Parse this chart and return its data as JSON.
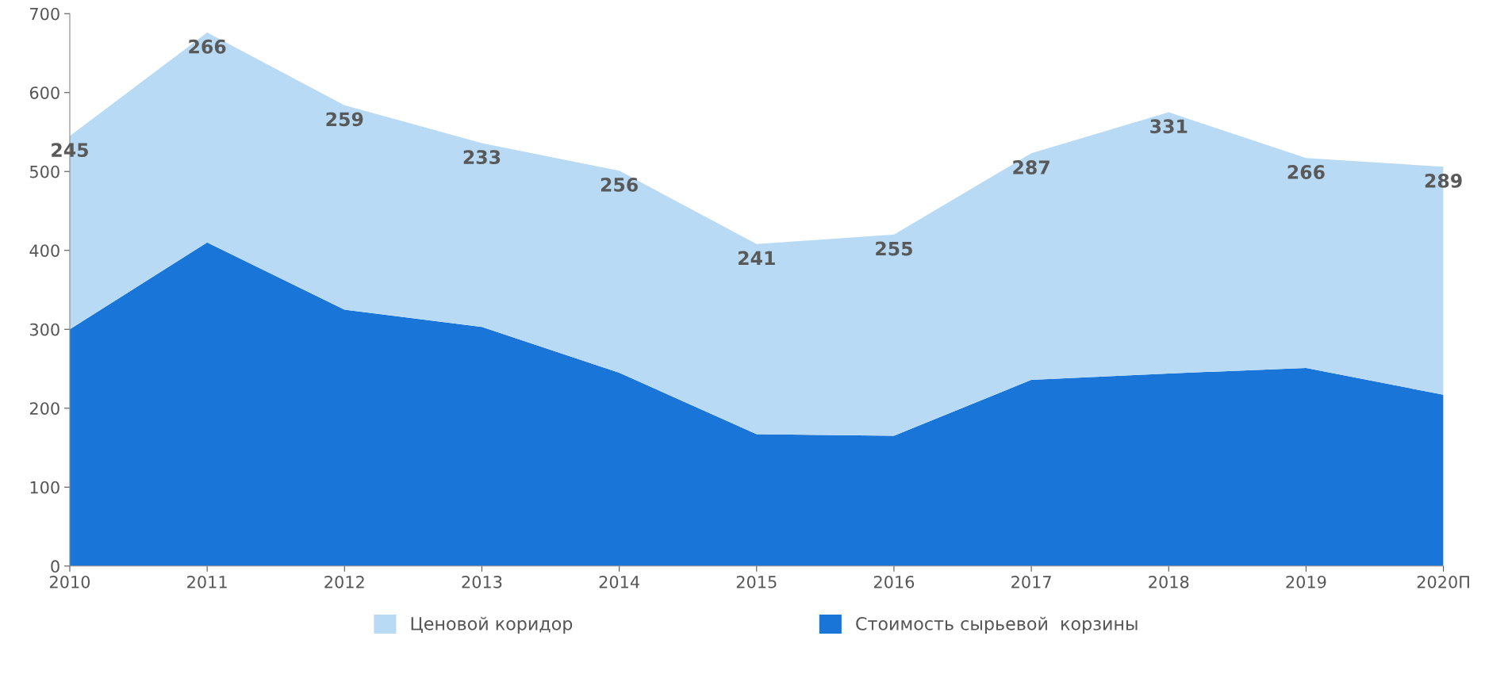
{
  "chart_data": {
    "type": "area",
    "stacked": true,
    "categories": [
      "2010",
      "2011",
      "2012",
      "2013",
      "2014",
      "2015",
      "2016",
      "2017",
      "2018",
      "2019",
      "2020П"
    ],
    "series": [
      {
        "name": "Стоимость сырьевой  корзины",
        "color": "#1a75d8",
        "values": [
          300,
          410,
          325,
          303,
          245,
          167,
          165,
          236,
          244,
          251,
          217
        ]
      },
      {
        "name": "Ценовой коридор",
        "color": "#b8daf4",
        "values": [
          245,
          266,
          259,
          233,
          256,
          241,
          255,
          287,
          331,
          266,
          289
        ],
        "value_labels": [
          "245",
          "266",
          "259",
          "233",
          "256",
          "241",
          "255",
          "287",
          "331",
          "266",
          "289"
        ]
      }
    ],
    "ylim": [
      0,
      700
    ],
    "yticks": [
      0,
      100,
      200,
      300,
      400,
      500,
      600,
      700
    ],
    "grid": false,
    "legend": "bottom"
  }
}
